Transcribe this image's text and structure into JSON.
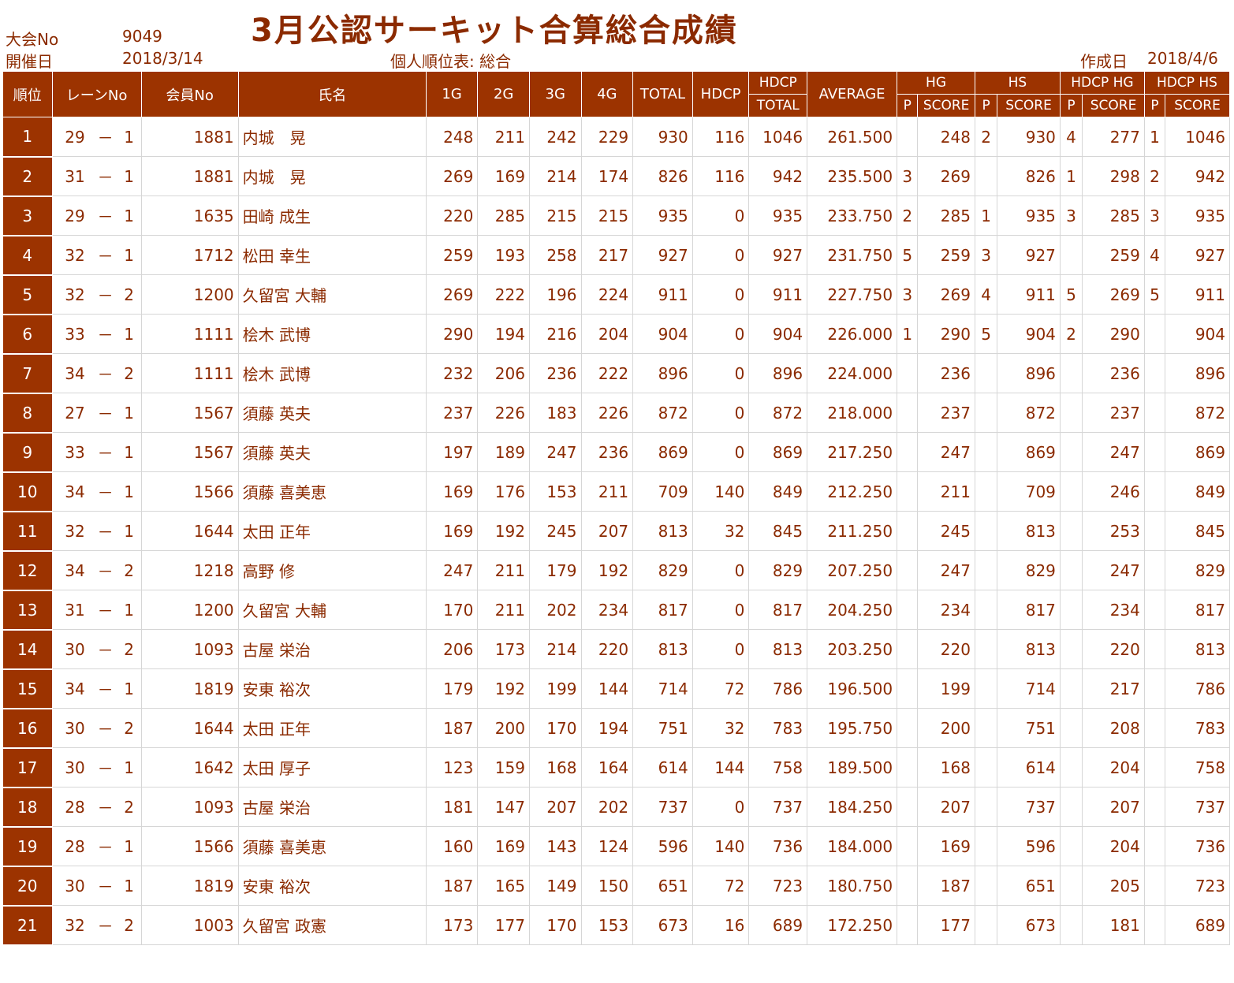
{
  "header": {
    "event_no_label": "大会No",
    "event_no": "9049",
    "date_label": "開催日",
    "date": "2018/3/14",
    "title": "3月公認サーキット合算総合成績",
    "subtitle": "個人順位表: 総合",
    "created_label": "作成日",
    "created_date": "2018/4/6"
  },
  "columns": {
    "rank": "順位",
    "lane": "レーンNo",
    "member": "会員No",
    "name": "氏名",
    "g1": "1G",
    "g2": "2G",
    "g3": "3G",
    "g4": "4G",
    "total": "TOTAL",
    "hdcp": "HDCP",
    "hdcp_total_line1": "HDCP",
    "hdcp_total_line2": "TOTAL",
    "average": "AVERAGE",
    "hg": "HG",
    "hs": "HS",
    "hdcp_hg": "HDCP HG",
    "hdcp_hs": "HDCP HS",
    "p": "P",
    "score": "SCORE"
  },
  "rows": [
    {
      "rank": "1",
      "lane_a": "29",
      "lane_sep": "－",
      "lane_b": "1",
      "member": "1881",
      "name": "内城　晃",
      "g1": "248",
      "g2": "211",
      "g3": "242",
      "g4": "229",
      "total": "930",
      "hdcp": "116",
      "hdcp_total": "1046",
      "average": "261.500",
      "hg_p": "",
      "hg": "248",
      "hs_p": "2",
      "hs": "930",
      "hhg_p": "4",
      "hhg": "277",
      "hhs_p": "1",
      "hhs": "1046"
    },
    {
      "rank": "2",
      "lane_a": "31",
      "lane_sep": "－",
      "lane_b": "1",
      "member": "1881",
      "name": "内城　晃",
      "g1": "269",
      "g2": "169",
      "g3": "214",
      "g4": "174",
      "total": "826",
      "hdcp": "116",
      "hdcp_total": "942",
      "average": "235.500",
      "hg_p": "3",
      "hg": "269",
      "hs_p": "",
      "hs": "826",
      "hhg_p": "1",
      "hhg": "298",
      "hhs_p": "2",
      "hhs": "942"
    },
    {
      "rank": "3",
      "lane_a": "29",
      "lane_sep": "－",
      "lane_b": "1",
      "member": "1635",
      "name": "田崎 成生",
      "g1": "220",
      "g2": "285",
      "g3": "215",
      "g4": "215",
      "total": "935",
      "hdcp": "0",
      "hdcp_total": "935",
      "average": "233.750",
      "hg_p": "2",
      "hg": "285",
      "hs_p": "1",
      "hs": "935",
      "hhg_p": "3",
      "hhg": "285",
      "hhs_p": "3",
      "hhs": "935"
    },
    {
      "rank": "4",
      "lane_a": "32",
      "lane_sep": "－",
      "lane_b": "1",
      "member": "1712",
      "name": "松田 幸生",
      "g1": "259",
      "g2": "193",
      "g3": "258",
      "g4": "217",
      "total": "927",
      "hdcp": "0",
      "hdcp_total": "927",
      "average": "231.750",
      "hg_p": "5",
      "hg": "259",
      "hs_p": "3",
      "hs": "927",
      "hhg_p": "",
      "hhg": "259",
      "hhs_p": "4",
      "hhs": "927"
    },
    {
      "rank": "5",
      "lane_a": "32",
      "lane_sep": "－",
      "lane_b": "2",
      "member": "1200",
      "name": "久留宮 大輔",
      "g1": "269",
      "g2": "222",
      "g3": "196",
      "g4": "224",
      "total": "911",
      "hdcp": "0",
      "hdcp_total": "911",
      "average": "227.750",
      "hg_p": "3",
      "hg": "269",
      "hs_p": "4",
      "hs": "911",
      "hhg_p": "5",
      "hhg": "269",
      "hhs_p": "5",
      "hhs": "911"
    },
    {
      "rank": "6",
      "lane_a": "33",
      "lane_sep": "－",
      "lane_b": "1",
      "member": "1111",
      "name": "桧木 武博",
      "g1": "290",
      "g2": "194",
      "g3": "216",
      "g4": "204",
      "total": "904",
      "hdcp": "0",
      "hdcp_total": "904",
      "average": "226.000",
      "hg_p": "1",
      "hg": "290",
      "hs_p": "5",
      "hs": "904",
      "hhg_p": "2",
      "hhg": "290",
      "hhs_p": "",
      "hhs": "904"
    },
    {
      "rank": "7",
      "lane_a": "34",
      "lane_sep": "－",
      "lane_b": "2",
      "member": "1111",
      "name": "桧木 武博",
      "g1": "232",
      "g2": "206",
      "g3": "236",
      "g4": "222",
      "total": "896",
      "hdcp": "0",
      "hdcp_total": "896",
      "average": "224.000",
      "hg_p": "",
      "hg": "236",
      "hs_p": "",
      "hs": "896",
      "hhg_p": "",
      "hhg": "236",
      "hhs_p": "",
      "hhs": "896"
    },
    {
      "rank": "8",
      "lane_a": "27",
      "lane_sep": "－",
      "lane_b": "1",
      "member": "1567",
      "name": "須藤 英夫",
      "g1": "237",
      "g2": "226",
      "g3": "183",
      "g4": "226",
      "total": "872",
      "hdcp": "0",
      "hdcp_total": "872",
      "average": "218.000",
      "hg_p": "",
      "hg": "237",
      "hs_p": "",
      "hs": "872",
      "hhg_p": "",
      "hhg": "237",
      "hhs_p": "",
      "hhs": "872"
    },
    {
      "rank": "9",
      "lane_a": "33",
      "lane_sep": "－",
      "lane_b": "1",
      "member": "1567",
      "name": "須藤 英夫",
      "g1": "197",
      "g2": "189",
      "g3": "247",
      "g4": "236",
      "total": "869",
      "hdcp": "0",
      "hdcp_total": "869",
      "average": "217.250",
      "hg_p": "",
      "hg": "247",
      "hs_p": "",
      "hs": "869",
      "hhg_p": "",
      "hhg": "247",
      "hhs_p": "",
      "hhs": "869"
    },
    {
      "rank": "10",
      "lane_a": "34",
      "lane_sep": "－",
      "lane_b": "1",
      "member": "1566",
      "name": "須藤 喜美恵",
      "g1": "169",
      "g2": "176",
      "g3": "153",
      "g4": "211",
      "total": "709",
      "hdcp": "140",
      "hdcp_total": "849",
      "average": "212.250",
      "hg_p": "",
      "hg": "211",
      "hs_p": "",
      "hs": "709",
      "hhg_p": "",
      "hhg": "246",
      "hhs_p": "",
      "hhs": "849"
    },
    {
      "rank": "11",
      "lane_a": "32",
      "lane_sep": "－",
      "lane_b": "1",
      "member": "1644",
      "name": "太田 正年",
      "g1": "169",
      "g2": "192",
      "g3": "245",
      "g4": "207",
      "total": "813",
      "hdcp": "32",
      "hdcp_total": "845",
      "average": "211.250",
      "hg_p": "",
      "hg": "245",
      "hs_p": "",
      "hs": "813",
      "hhg_p": "",
      "hhg": "253",
      "hhs_p": "",
      "hhs": "845"
    },
    {
      "rank": "12",
      "lane_a": "34",
      "lane_sep": "－",
      "lane_b": "2",
      "member": "1218",
      "name": "高野 修",
      "g1": "247",
      "g2": "211",
      "g3": "179",
      "g4": "192",
      "total": "829",
      "hdcp": "0",
      "hdcp_total": "829",
      "average": "207.250",
      "hg_p": "",
      "hg": "247",
      "hs_p": "",
      "hs": "829",
      "hhg_p": "",
      "hhg": "247",
      "hhs_p": "",
      "hhs": "829"
    },
    {
      "rank": "13",
      "lane_a": "31",
      "lane_sep": "－",
      "lane_b": "1",
      "member": "1200",
      "name": "久留宮 大輔",
      "g1": "170",
      "g2": "211",
      "g3": "202",
      "g4": "234",
      "total": "817",
      "hdcp": "0",
      "hdcp_total": "817",
      "average": "204.250",
      "hg_p": "",
      "hg": "234",
      "hs_p": "",
      "hs": "817",
      "hhg_p": "",
      "hhg": "234",
      "hhs_p": "",
      "hhs": "817"
    },
    {
      "rank": "14",
      "lane_a": "30",
      "lane_sep": "－",
      "lane_b": "2",
      "member": "1093",
      "name": "古屋 栄治",
      "g1": "206",
      "g2": "173",
      "g3": "214",
      "g4": "220",
      "total": "813",
      "hdcp": "0",
      "hdcp_total": "813",
      "average": "203.250",
      "hg_p": "",
      "hg": "220",
      "hs_p": "",
      "hs": "813",
      "hhg_p": "",
      "hhg": "220",
      "hhs_p": "",
      "hhs": "813"
    },
    {
      "rank": "15",
      "lane_a": "34",
      "lane_sep": "－",
      "lane_b": "1",
      "member": "1819",
      "name": "安東 裕次",
      "g1": "179",
      "g2": "192",
      "g3": "199",
      "g4": "144",
      "total": "714",
      "hdcp": "72",
      "hdcp_total": "786",
      "average": "196.500",
      "hg_p": "",
      "hg": "199",
      "hs_p": "",
      "hs": "714",
      "hhg_p": "",
      "hhg": "217",
      "hhs_p": "",
      "hhs": "786"
    },
    {
      "rank": "16",
      "lane_a": "30",
      "lane_sep": "－",
      "lane_b": "2",
      "member": "1644",
      "name": "太田 正年",
      "g1": "187",
      "g2": "200",
      "g3": "170",
      "g4": "194",
      "total": "751",
      "hdcp": "32",
      "hdcp_total": "783",
      "average": "195.750",
      "hg_p": "",
      "hg": "200",
      "hs_p": "",
      "hs": "751",
      "hhg_p": "",
      "hhg": "208",
      "hhs_p": "",
      "hhs": "783"
    },
    {
      "rank": "17",
      "lane_a": "30",
      "lane_sep": "－",
      "lane_b": "1",
      "member": "1642",
      "name": "太田 厚子",
      "g1": "123",
      "g2": "159",
      "g3": "168",
      "g4": "164",
      "total": "614",
      "hdcp": "144",
      "hdcp_total": "758",
      "average": "189.500",
      "hg_p": "",
      "hg": "168",
      "hs_p": "",
      "hs": "614",
      "hhg_p": "",
      "hhg": "204",
      "hhs_p": "",
      "hhs": "758"
    },
    {
      "rank": "18",
      "lane_a": "28",
      "lane_sep": "－",
      "lane_b": "2",
      "member": "1093",
      "name": "古屋 栄治",
      "g1": "181",
      "g2": "147",
      "g3": "207",
      "g4": "202",
      "total": "737",
      "hdcp": "0",
      "hdcp_total": "737",
      "average": "184.250",
      "hg_p": "",
      "hg": "207",
      "hs_p": "",
      "hs": "737",
      "hhg_p": "",
      "hhg": "207",
      "hhs_p": "",
      "hhs": "737"
    },
    {
      "rank": "19",
      "lane_a": "28",
      "lane_sep": "－",
      "lane_b": "1",
      "member": "1566",
      "name": "須藤 喜美恵",
      "g1": "160",
      "g2": "169",
      "g3": "143",
      "g4": "124",
      "total": "596",
      "hdcp": "140",
      "hdcp_total": "736",
      "average": "184.000",
      "hg_p": "",
      "hg": "169",
      "hs_p": "",
      "hs": "596",
      "hhg_p": "",
      "hhg": "204",
      "hhs_p": "",
      "hhs": "736"
    },
    {
      "rank": "20",
      "lane_a": "30",
      "lane_sep": "－",
      "lane_b": "1",
      "member": "1819",
      "name": "安東 裕次",
      "g1": "187",
      "g2": "165",
      "g3": "149",
      "g4": "150",
      "total": "651",
      "hdcp": "72",
      "hdcp_total": "723",
      "average": "180.750",
      "hg_p": "",
      "hg": "187",
      "hs_p": "",
      "hs": "651",
      "hhg_p": "",
      "hhg": "205",
      "hhs_p": "",
      "hhs": "723"
    },
    {
      "rank": "21",
      "lane_a": "32",
      "lane_sep": "－",
      "lane_b": "2",
      "member": "1003",
      "name": "久留宮 政憲",
      "g1": "173",
      "g2": "177",
      "g3": "170",
      "g4": "153",
      "total": "673",
      "hdcp": "16",
      "hdcp_total": "689",
      "average": "172.250",
      "hg_p": "",
      "hg": "177",
      "hs_p": "",
      "hs": "673",
      "hhg_p": "",
      "hhg": "181",
      "hhs_p": "",
      "hhs": "689"
    }
  ]
}
